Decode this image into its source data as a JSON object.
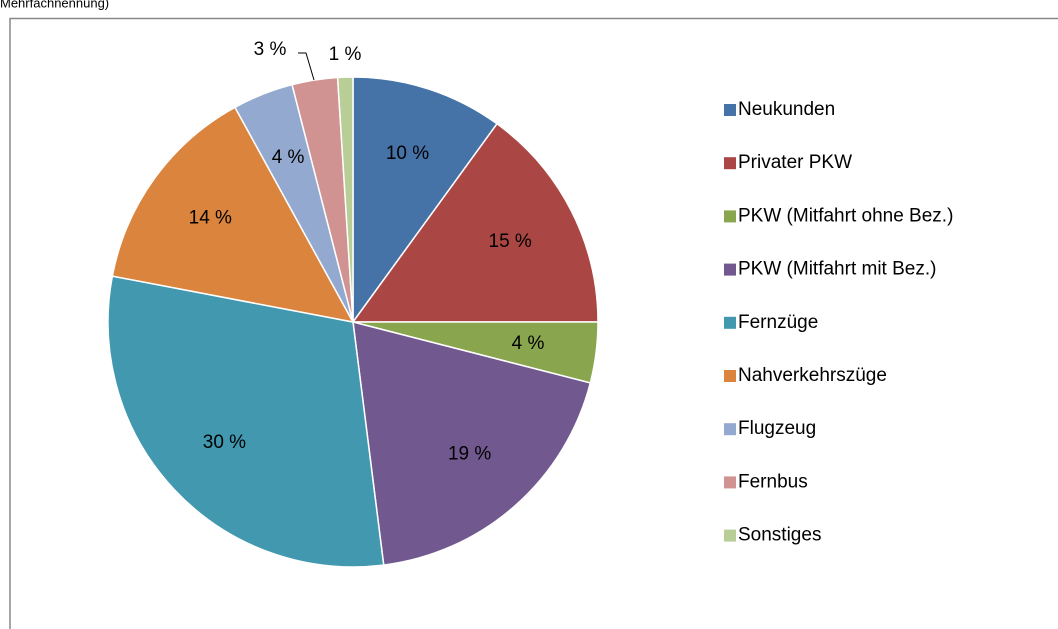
{
  "chart_data": {
    "type": "pie",
    "note": "Mehrfachnennung)",
    "categories": [
      "Neukunden",
      "Privater PKW",
      "PKW (Mitfahrt ohne Bez.)",
      "PKW (Mitfahrt mit Bez.)",
      "Fernzüge",
      "Nahverkehrszüge",
      "Flugzeug",
      "Fernbus",
      "Sonstiges"
    ],
    "values": [
      10,
      15,
      4,
      19,
      30,
      14,
      4,
      3,
      1
    ],
    "value_labels": [
      "10 %",
      "15 %",
      "4 %",
      "19 %",
      "30 %",
      "14 %",
      "4 %",
      "3 %",
      "1 %"
    ],
    "colors": [
      "#4572a7",
      "#aa4643",
      "#89a54e",
      "#71588f",
      "#4198af",
      "#db843d",
      "#93a9cf",
      "#d19392",
      "#b9cd96"
    ],
    "legend": "right"
  }
}
